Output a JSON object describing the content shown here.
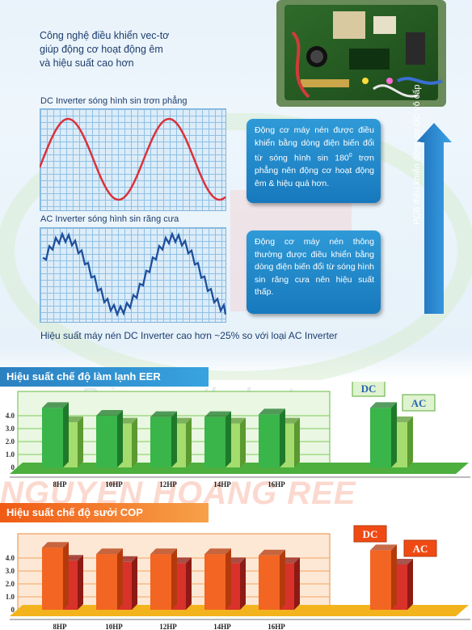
{
  "intro": {
    "lines": [
      "Công nghệ điều khiển vec-tơ",
      "giúp động cơ hoạt động êm",
      "và hiệu suất cao hơn"
    ]
  },
  "dc_wave": {
    "title": "DC Inverter sóng hình sin trơn phẳng",
    "bubble": {
      "before": "Động cơ máy nén được điều khiển bằng dòng điện biến đổi từ sóng hình sin 180",
      "sup": "0",
      "after": " trơn phẳng nên động cơ hoạt động êm & hiệu quả hơn."
    },
    "color": "#d9323b"
  },
  "ac_wave": {
    "title": "AC Inverter sóng hình sin răng cưa",
    "bubble": "Động cơ máy nén thông thường được điều khiển bằng dòng điện biến đổi từ sóng hình sin răng cưa nên hiệu suất thấp.",
    "color": "#1f4f9c"
  },
  "pcb_label": "PCB điều khiển động cơ DC vô cấp",
  "summary": "Hiệu suất máy nén DC Inverter cao hơn ~25% so với loại AC Inverter",
  "watermark": {
    "slogan": "Bring you the best",
    "brand": "NGUYEN HOANG REE"
  },
  "chart_data": [
    {
      "type": "bar",
      "title": "Hiệu suất chế độ làm lạnh EER",
      "categories": [
        "8HP",
        "10HP",
        "12HP",
        "14HP",
        "16HP"
      ],
      "series": [
        {
          "name": "DC",
          "values": [
            4.6,
            4.0,
            3.9,
            3.9,
            4.1
          ]
        },
        {
          "name": "AC",
          "values": [
            3.5,
            3.4,
            3.4,
            3.4,
            3.4
          ]
        }
      ],
      "yticks": [
        "0",
        "1.0",
        "2.0",
        "3.0",
        "4.0"
      ],
      "ylim": [
        0,
        5
      ],
      "legend_example": {
        "dc": 4.6,
        "ac": 3.5
      },
      "colors": {
        "dc_front": "#39b54a",
        "dc_side": "#1e7a2a",
        "ac_front": "#a5dc6e",
        "ac_side": "#5a9a30",
        "floor": "#4caf3e"
      }
    },
    {
      "type": "bar",
      "title": "Hiệu suất chế độ sưởi COP",
      "categories": [
        "8HP",
        "10HP",
        "12HP",
        "14HP",
        "16HP"
      ],
      "series": [
        {
          "name": "DC",
          "values": [
            4.8,
            4.3,
            4.3,
            4.3,
            4.2
          ]
        },
        {
          "name": "AC",
          "values": [
            3.8,
            3.7,
            3.6,
            3.6,
            3.6
          ]
        }
      ],
      "yticks": [
        "0",
        "1.0",
        "2.0",
        "3.0",
        "4.0"
      ],
      "ylim": [
        0,
        5
      ],
      "legend_example": {
        "dc": 4.6,
        "ac": 3.5
      },
      "colors": {
        "dc_front": "#f26522",
        "dc_side": "#b43a0c",
        "ac_front": "#d8322a",
        "ac_side": "#8e1a14",
        "floor": "#f3b31c"
      }
    }
  ]
}
